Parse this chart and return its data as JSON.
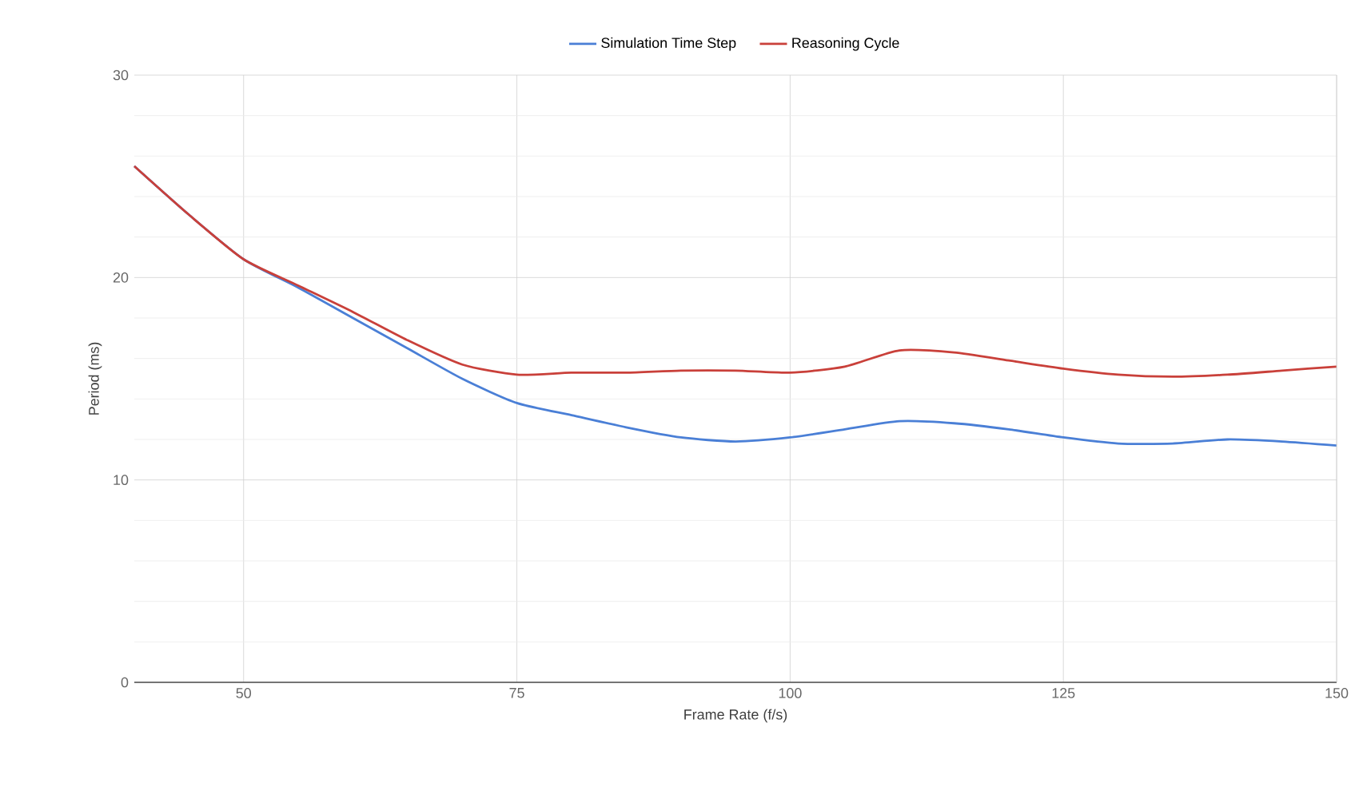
{
  "chart_data": {
    "type": "line",
    "xlabel": "Frame Rate (f/s)",
    "ylabel": "Period (ms)",
    "x": [
      40,
      45,
      50,
      55,
      60,
      65,
      70,
      75,
      80,
      85,
      90,
      95,
      100,
      105,
      110,
      115,
      120,
      125,
      130,
      135,
      140,
      145,
      150
    ],
    "series": [
      {
        "name": "Simulation Time Step",
        "color": "#4a7fd6",
        "values": [
          25.5,
          23.1,
          20.9,
          19.5,
          18.0,
          16.5,
          15.0,
          13.8,
          13.2,
          12.6,
          12.1,
          11.9,
          12.1,
          12.5,
          12.9,
          12.8,
          12.5,
          12.1,
          11.8,
          11.8,
          12.0,
          11.9,
          11.7
        ]
      },
      {
        "name": "Reasoning Cycle",
        "color": "#c9403a",
        "values": [
          25.5,
          23.1,
          20.9,
          19.6,
          18.3,
          16.9,
          15.7,
          15.2,
          15.3,
          15.3,
          15.4,
          15.4,
          15.3,
          15.6,
          16.4,
          16.3,
          15.9,
          15.5,
          15.2,
          15.1,
          15.2,
          15.4,
          15.6
        ]
      }
    ],
    "xlim": [
      40,
      150
    ],
    "xticks": [
      50,
      75,
      100,
      125,
      150
    ],
    "ylim": [
      0,
      30
    ],
    "yticks": [
      0,
      10,
      20,
      30
    ],
    "grid": true,
    "legend": "top",
    "line_style": "solid",
    "marker": "none"
  }
}
